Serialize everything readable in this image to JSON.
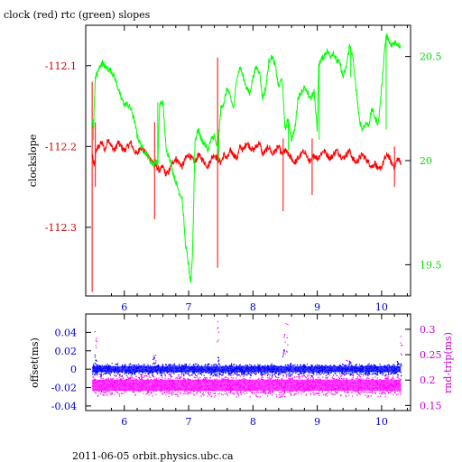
{
  "title": "clock (red) rtc (green) slopes",
  "footer": "2011-06-05  orbit.physics.ubc.ca",
  "chart_data": [
    {
      "type": "line",
      "x_ticks": [
        "6",
        "7",
        "8",
        "9",
        "10"
      ],
      "xlim": [
        5.4,
        10.45
      ],
      "left_axis": {
        "label": "clockslope",
        "ticks": [
          "-112.1",
          "-112.2",
          "-112.3"
        ],
        "tick_values": [
          -112.1,
          -112.2,
          -112.3
        ],
        "ylim": [
          -112.385,
          -112.05
        ],
        "color": "#cc0000"
      },
      "right_axis": {
        "label": "",
        "ticks": [
          "20.5",
          "20",
          "19.5"
        ],
        "tick_values": [
          20.5,
          20.0,
          19.5
        ],
        "ylim": [
          19.35,
          20.65
        ],
        "color": "#00dd00"
      },
      "series": [
        {
          "name": "clock",
          "axis": "left",
          "color": "#ff0000",
          "x": [
            5.5,
            5.53,
            5.56,
            5.6,
            5.65,
            5.7,
            5.75,
            5.8,
            5.85,
            5.9,
            5.95,
            6.0,
            6.05,
            6.1,
            6.15,
            6.2,
            6.25,
            6.3,
            6.35,
            6.4,
            6.45,
            6.5,
            6.55,
            6.6,
            6.65,
            6.7,
            6.75,
            6.8,
            6.85,
            6.9,
            6.95,
            7.0,
            7.05,
            7.1,
            7.15,
            7.2,
            7.25,
            7.3,
            7.35,
            7.4,
            7.45,
            7.5,
            7.55,
            7.6,
            7.65,
            7.7,
            7.75,
            7.8,
            7.85,
            7.9,
            7.95,
            8.0,
            8.05,
            8.1,
            8.15,
            8.2,
            8.25,
            8.3,
            8.35,
            8.4,
            8.45,
            8.5,
            8.55,
            8.6,
            8.65,
            8.7,
            8.75,
            8.8,
            8.85,
            8.9,
            8.95,
            9.0,
            9.05,
            9.1,
            9.15,
            9.2,
            9.25,
            9.3,
            9.35,
            9.4,
            9.45,
            9.5,
            9.55,
            9.6,
            9.65,
            9.7,
            9.75,
            9.8,
            9.85,
            9.9,
            9.95,
            10.0,
            10.05,
            10.1,
            10.15,
            10.2,
            10.25,
            10.3
          ],
          "y": [
            -112.21,
            -112.225,
            -112.205,
            -112.2,
            -112.195,
            -112.205,
            -112.19,
            -112.2,
            -112.205,
            -112.195,
            -112.2,
            -112.205,
            -112.2,
            -112.195,
            -112.205,
            -112.21,
            -112.2,
            -112.205,
            -112.21,
            -112.215,
            -112.22,
            -112.225,
            -112.23,
            -112.225,
            -112.235,
            -112.23,
            -112.22,
            -112.215,
            -112.22,
            -112.225,
            -112.215,
            -112.21,
            -112.215,
            -112.22,
            -112.21,
            -112.215,
            -112.22,
            -112.225,
            -112.215,
            -112.21,
            -112.215,
            -112.22,
            -112.21,
            -112.215,
            -112.205,
            -112.21,
            -112.215,
            -112.2,
            -112.205,
            -112.195,
            -112.2,
            -112.205,
            -112.2,
            -112.195,
            -112.21,
            -112.205,
            -112.2,
            -112.21,
            -112.205,
            -112.2,
            -112.21,
            -112.205,
            -112.21,
            -112.215,
            -112.22,
            -112.215,
            -112.21,
            -112.205,
            -112.215,
            -112.22,
            -112.21,
            -112.215,
            -112.21,
            -112.205,
            -112.21,
            -112.215,
            -112.21,
            -112.205,
            -112.21,
            -112.215,
            -112.21,
            -112.205,
            -112.215,
            -112.22,
            -112.215,
            -112.21,
            -112.215,
            -112.22,
            -112.225,
            -112.22,
            -112.23,
            -112.225,
            -112.215,
            -112.21,
            -112.22,
            -112.225,
            -112.215,
            -112.22
          ],
          "spikes": [
            {
              "x": 5.5,
              "y_min": -112.38,
              "y_max": -112.12
            },
            {
              "x": 5.55,
              "y_min": -112.25,
              "y_max": -112.17
            },
            {
              "x": 6.47,
              "y_min": -112.29,
              "y_max": -112.17
            },
            {
              "x": 7.45,
              "y_min": -112.35,
              "y_max": -112.09
            },
            {
              "x": 8.47,
              "y_min": -112.28,
              "y_max": -112.19
            },
            {
              "x": 8.92,
              "y_min": -112.26,
              "y_max": -112.19
            },
            {
              "x": 10.2,
              "y_min": -112.25,
              "y_max": -112.2
            }
          ]
        },
        {
          "name": "rtc",
          "axis": "right",
          "color": "#00ff00",
          "x": [
            5.5,
            5.52,
            5.55,
            5.58,
            5.62,
            5.66,
            5.7,
            5.75,
            5.8,
            5.85,
            5.9,
            5.95,
            6.0,
            6.05,
            6.1,
            6.15,
            6.2,
            6.25,
            6.3,
            6.35,
            6.4,
            6.45,
            6.5,
            6.52,
            6.55,
            6.6,
            6.65,
            6.7,
            6.75,
            6.8,
            6.85,
            6.9,
            6.95,
            7.0,
            7.03,
            7.06,
            7.1,
            7.15,
            7.2,
            7.25,
            7.3,
            7.35,
            7.4,
            7.45,
            7.47,
            7.5,
            7.55,
            7.6,
            7.65,
            7.7,
            7.75,
            7.8,
            7.85,
            7.9,
            7.95,
            8.0,
            8.05,
            8.1,
            8.15,
            8.2,
            8.25,
            8.3,
            8.35,
            8.4,
            8.45,
            8.5,
            8.55,
            8.6,
            8.65,
            8.7,
            8.75,
            8.8,
            8.85,
            8.9,
            8.95,
            9.0,
            9.02,
            9.05,
            9.1,
            9.15,
            9.2,
            9.25,
            9.3,
            9.35,
            9.4,
            9.45,
            9.5,
            9.55,
            9.6,
            9.62,
            9.65,
            9.7,
            9.75,
            9.8,
            9.85,
            9.9,
            9.95,
            10.0,
            10.05,
            10.08,
            10.1,
            10.15,
            10.2,
            10.25,
            10.3
          ],
          "y": [
            20.2,
            20.15,
            20.4,
            20.42,
            20.45,
            20.47,
            20.45,
            20.44,
            20.43,
            20.4,
            20.35,
            20.3,
            20.27,
            20.27,
            20.25,
            20.2,
            20.12,
            20.08,
            20.05,
            20.03,
            20.0,
            19.98,
            20.0,
            19.98,
            20.27,
            20.28,
            20.05,
            20.02,
            19.95,
            19.9,
            19.85,
            19.82,
            19.6,
            19.5,
            19.4,
            19.55,
            20.1,
            20.15,
            20.1,
            20.08,
            20.05,
            20.1,
            20.12,
            20.05,
            20.12,
            20.25,
            20.28,
            20.35,
            20.3,
            20.25,
            20.4,
            20.45,
            20.4,
            20.35,
            20.32,
            20.4,
            20.45,
            20.43,
            20.3,
            20.35,
            20.48,
            20.5,
            20.45,
            20.35,
            20.4,
            20.15,
            20.2,
            20.1,
            20.15,
            20.3,
            20.33,
            20.35,
            20.32,
            20.3,
            20.33,
            20.15,
            20.45,
            20.48,
            20.5,
            20.53,
            20.5,
            20.52,
            20.48,
            20.47,
            20.4,
            20.45,
            20.55,
            20.5,
            20.35,
            20.3,
            20.2,
            20.15,
            20.18,
            20.17,
            20.25,
            20.2,
            20.18,
            20.35,
            20.55,
            20.6,
            20.58,
            20.55,
            20.57,
            20.56,
            20.55
          ],
          "spikes": [
            {
              "x": 5.52,
              "y_min": 20.1,
              "y_max": 20.2
            },
            {
              "x": 6.52,
              "y_min": 19.98,
              "y_max": 20.28
            },
            {
              "x": 7.47,
              "y_min": 20.0,
              "y_max": 20.15
            },
            {
              "x": 8.55,
              "y_min": 20.05,
              "y_max": 20.2
            },
            {
              "x": 9.03,
              "y_min": 20.1,
              "y_max": 20.45
            },
            {
              "x": 9.52,
              "y_min": 20.4,
              "y_max": 20.55
            },
            {
              "x": 10.07,
              "y_min": 20.15,
              "y_max": 20.6
            }
          ]
        }
      ]
    },
    {
      "type": "scatter",
      "x_ticks": [
        "6",
        "7",
        "8",
        "9",
        "10"
      ],
      "xlim": [
        5.4,
        10.45
      ],
      "left_axis": {
        "label": "offset(ms)",
        "ticks": [
          "0.04",
          "0.02",
          "0",
          "-0.02",
          "-0.04"
        ],
        "tick_values": [
          0.04,
          0.02,
          0.0,
          -0.02,
          -0.04
        ],
        "ylim": [
          -0.045,
          0.06
        ],
        "color": "#0000cc"
      },
      "right_axis": {
        "label": "rnd-trip(ms)",
        "ticks": [
          "0.3",
          "0.25",
          "0.2",
          "0.15"
        ],
        "tick_values": [
          0.3,
          0.25,
          0.2,
          0.15
        ],
        "ylim": [
          0.14,
          0.33
        ],
        "color": "#cc00cc"
      },
      "series": [
        {
          "name": "offset",
          "axis": "left",
          "color": "#0000ff",
          "band_center": 0.0,
          "band_halfwidth": 0.006,
          "outliers": [
            {
              "x": 5.55,
              "y": 0.018
            },
            {
              "x": 6.45,
              "y": 0.015
            },
            {
              "x": 7.45,
              "y": 0.014
            },
            {
              "x": 8.47,
              "y": 0.022
            },
            {
              "x": 9.5,
              "y": 0.01
            },
            {
              "x": 10.25,
              "y": 0.012
            }
          ]
        },
        {
          "name": "rnd-trip",
          "axis": "right",
          "color": "#ff00ff",
          "band_center": 0.19,
          "band_halfwidth": 0.02,
          "outliers": [
            {
              "x": 5.55,
              "y": 0.3
            },
            {
              "x": 6.47,
              "y": 0.25
            },
            {
              "x": 7.45,
              "y": 0.32
            },
            {
              "x": 8.48,
              "y": 0.3
            },
            {
              "x": 8.52,
              "y": 0.32
            },
            {
              "x": 9.45,
              "y": 0.24
            },
            {
              "x": 10.3,
              "y": 0.29
            }
          ]
        }
      ]
    }
  ]
}
